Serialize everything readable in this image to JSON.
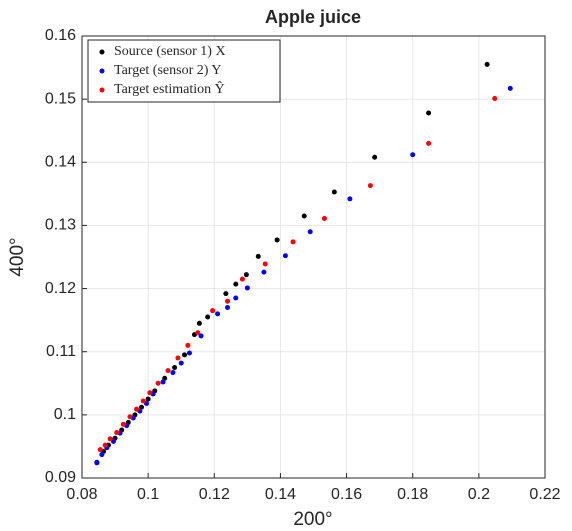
{
  "chart_data": {
    "type": "scatter",
    "title": "Apple juice",
    "x_label": "200°",
    "y_label": "400°",
    "xlim": [
      0.08,
      0.22
    ],
    "ylim": [
      0.09,
      0.16
    ],
    "xticks": [
      0.08,
      0.1,
      0.12,
      0.14,
      0.16,
      0.18,
      0.2,
      0.22
    ],
    "yticks": [
      0.09,
      0.1,
      0.11,
      0.12,
      0.13,
      0.14,
      0.15,
      0.16
    ],
    "grid": true,
    "legend": "upper left",
    "series": [
      {
        "name": "Source (sensor 1) X",
        "color": "#000000",
        "x": [
          0.2025,
          0.1848,
          0.1685,
          0.1563,
          0.1472,
          0.139,
          0.1333,
          0.1297,
          0.1265,
          0.1235,
          0.118,
          0.1155,
          0.114,
          0.111,
          0.108,
          0.105,
          0.102,
          0.1,
          0.098,
          0.096,
          0.094,
          0.092,
          0.09,
          0.088,
          0.0865,
          0.0845
        ],
        "y": [
          0.1555,
          0.1478,
          0.1408,
          0.1353,
          0.1315,
          0.1277,
          0.1251,
          0.1222,
          0.1207,
          0.1192,
          0.1155,
          0.1145,
          0.1127,
          0.1095,
          0.1075,
          0.1058,
          0.1038,
          0.1025,
          0.1012,
          0.1,
          0.0988,
          0.0976,
          0.0963,
          0.0952,
          0.0942,
          0.0925
        ]
      },
      {
        "name": "Target (sensor 2) Y",
        "color": "#0000ff",
        "x": [
          0.2095,
          0.18,
          0.161,
          0.149,
          0.1415,
          0.135,
          0.13,
          0.1265,
          0.124,
          0.121,
          0.116,
          0.1125,
          0.11,
          0.1075,
          0.1045,
          0.1015,
          0.0995,
          0.0975,
          0.0955,
          0.0935,
          0.0915,
          0.0895,
          0.0875,
          0.086,
          0.0845
        ],
        "y": [
          0.1517,
          0.1412,
          0.1342,
          0.129,
          0.1252,
          0.1226,
          0.1201,
          0.1185,
          0.117,
          0.116,
          0.1125,
          0.1098,
          0.1082,
          0.1067,
          0.1052,
          0.1033,
          0.1018,
          0.1006,
          0.0995,
          0.0983,
          0.0971,
          0.0958,
          0.0948,
          0.0937,
          0.0924
        ]
      },
      {
        "name": "Target estimation Ŷ",
        "color": "#ff0000",
        "x": [
          0.2048,
          0.1848,
          0.1672,
          0.1533,
          0.1438,
          0.1354,
          0.1285,
          0.124,
          0.1195,
          0.115,
          0.112,
          0.109,
          0.106,
          0.103,
          0.1005,
          0.0985,
          0.0965,
          0.0945,
          0.0925,
          0.0905,
          0.0885,
          0.087,
          0.0855
        ],
        "y": [
          0.1501,
          0.143,
          0.1363,
          0.1311,
          0.1274,
          0.1239,
          0.1215,
          0.118,
          0.1165,
          0.113,
          0.111,
          0.109,
          0.107,
          0.105,
          0.1035,
          0.1022,
          0.1009,
          0.0997,
          0.0985,
          0.0972,
          0.0962,
          0.0952,
          0.0945
        ]
      }
    ]
  }
}
